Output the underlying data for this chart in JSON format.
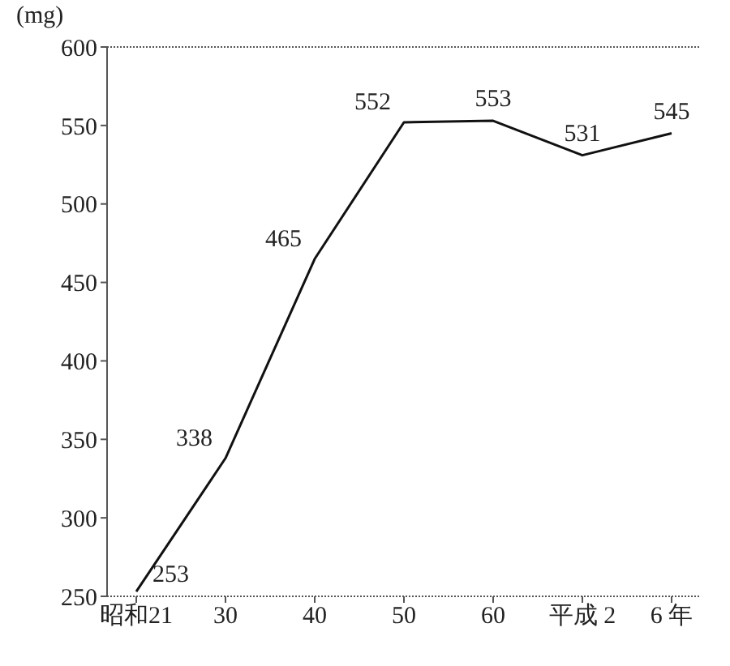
{
  "chart_data": {
    "type": "line",
    "ylabel": "(mg)",
    "categories": [
      "昭和21",
      "30",
      "40",
      "50",
      "60",
      "平成 2",
      "6 年"
    ],
    "series": [
      {
        "color": "#111111",
        "values": [
          253,
          338,
          465,
          552,
          553,
          531,
          545
        ]
      }
    ],
    "ylim": [
      250,
      600
    ],
    "yticks": [
      250,
      300,
      350,
      400,
      450,
      500,
      550,
      600
    ],
    "data_labels": true,
    "marker": "none",
    "line_style": "solid"
  }
}
